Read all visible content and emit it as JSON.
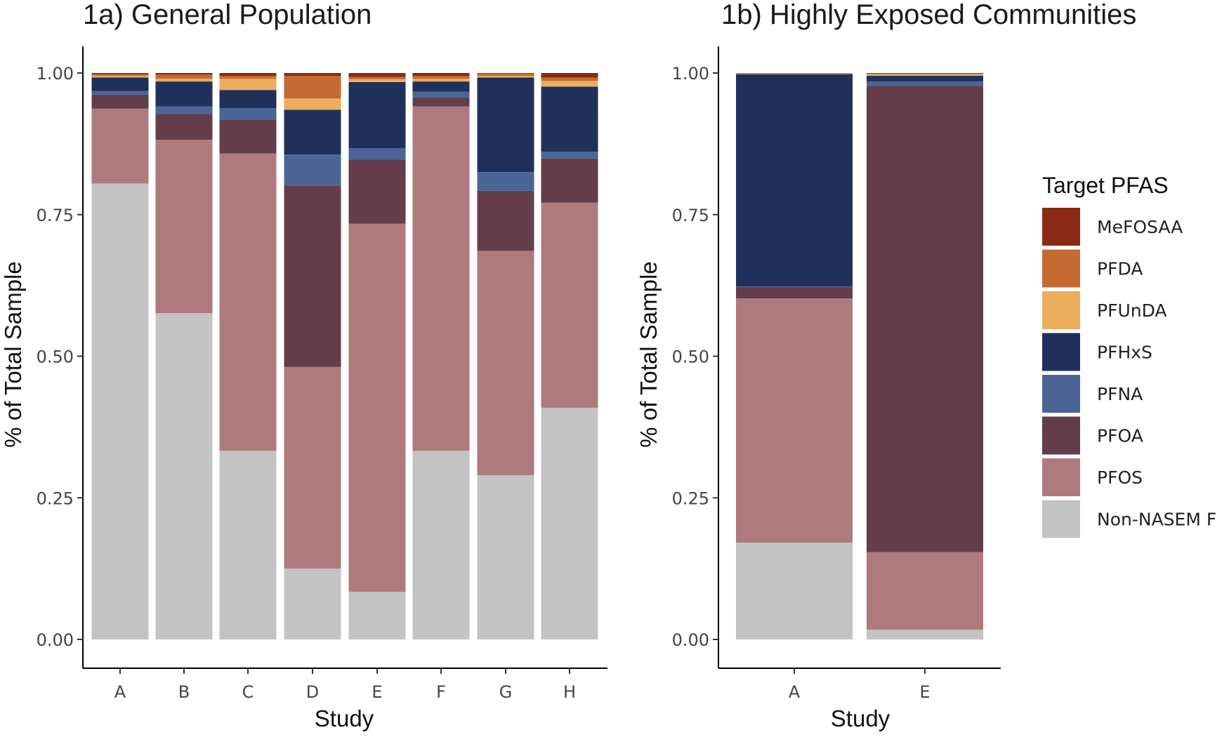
{
  "chart_data": [
    {
      "type": "bar",
      "stacked": true,
      "title": "1a) General Population",
      "xlabel": "Study",
      "ylabel": "% of Total Sample",
      "ylim": [
        0,
        1
      ],
      "yticks": [
        "0.00",
        "0.25",
        "0.50",
        "0.75",
        "1.00"
      ],
      "categories": [
        "A",
        "B",
        "C",
        "D",
        "E",
        "F",
        "G",
        "H"
      ],
      "series": [
        {
          "name": "Non-NASEM F",
          "values": [
            0.805,
            0.576,
            0.333,
            0.125,
            0.084,
            0.333,
            0.29,
            0.409
          ]
        },
        {
          "name": "PFOS",
          "values": [
            0.132,
            0.306,
            0.525,
            0.356,
            0.65,
            0.608,
            0.396,
            0.362
          ]
        },
        {
          "name": "PFOA",
          "values": [
            0.025,
            0.046,
            0.06,
            0.32,
            0.113,
            0.016,
            0.106,
            0.078
          ]
        },
        {
          "name": "PFNA",
          "values": [
            0.006,
            0.013,
            0.02,
            0.055,
            0.02,
            0.01,
            0.033,
            0.012
          ]
        },
        {
          "name": "PFHxS",
          "values": [
            0.024,
            0.044,
            0.032,
            0.079,
            0.117,
            0.018,
            0.167,
            0.115
          ]
        },
        {
          "name": "PFUnDA",
          "values": [
            0.003,
            0.005,
            0.02,
            0.02,
            0.005,
            0.005,
            0.003,
            0.01
          ]
        },
        {
          "name": "PFDA",
          "values": [
            0.003,
            0.007,
            0.005,
            0.04,
            0.004,
            0.005,
            0.004,
            0.006
          ]
        },
        {
          "name": "MeFOSAA",
          "values": [
            0.002,
            0.003,
            0.005,
            0.005,
            0.007,
            0.005,
            0.001,
            0.008
          ]
        }
      ]
    },
    {
      "type": "bar",
      "stacked": true,
      "title": "1b) Highly Exposed Communities",
      "xlabel": "Study",
      "ylabel": "% of Total Sample",
      "ylim": [
        0,
        1
      ],
      "yticks": [
        "0.00",
        "0.25",
        "0.50",
        "0.75",
        "1.00"
      ],
      "categories": [
        "A",
        "E"
      ],
      "series": [
        {
          "name": "Non-NASEM F",
          "values": [
            0.171,
            0.017
          ]
        },
        {
          "name": "PFOS",
          "values": [
            0.431,
            0.137
          ]
        },
        {
          "name": "PFOA",
          "values": [
            0.02,
            0.823
          ]
        },
        {
          "name": "PFNA",
          "values": [
            0.001,
            0.008
          ]
        },
        {
          "name": "PFHxS",
          "values": [
            0.375,
            0.01
          ]
        },
        {
          "name": "PFUnDA",
          "values": [
            0.001,
            0.003
          ]
        },
        {
          "name": "PFDA",
          "values": [
            0.001,
            0.001
          ]
        },
        {
          "name": "MeFOSAA",
          "values": [
            0.0,
            0.001
          ]
        }
      ]
    }
  ],
  "legend": {
    "title": "Target PFAS",
    "items": [
      {
        "name": "MeFOSAA",
        "color": "#8a2a14"
      },
      {
        "name": "PFDA",
        "color": "#c46a32"
      },
      {
        "name": "PFUnDA",
        "color": "#ecad5c"
      },
      {
        "name": "PFHxS",
        "color": "#1f305a"
      },
      {
        "name": "PFNA",
        "color": "#4a6596"
      },
      {
        "name": "PFOA",
        "color": "#643d4a"
      },
      {
        "name": "PFOS",
        "color": "#ae7a7e"
      },
      {
        "name": "Non-NASEM F",
        "color": "#c3c3c3"
      }
    ]
  },
  "colors": {
    "MeFOSAA": "#8a2a14",
    "PFDA": "#c46a32",
    "PFUnDA": "#ecad5c",
    "PFHxS": "#1f305a",
    "PFNA": "#4a6596",
    "PFOA": "#643d4a",
    "PFOS": "#ae7a7e",
    "Non-NASEM F": "#c3c3c3"
  }
}
